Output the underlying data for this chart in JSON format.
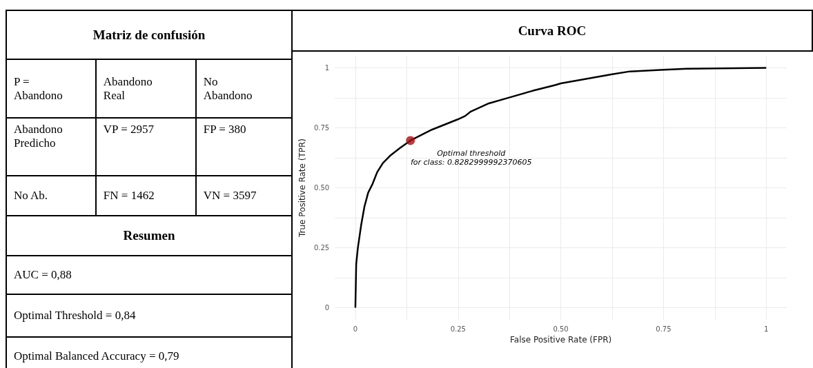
{
  "chart_data": [
    {
      "type": "other",
      "title": "Matriz de confusión",
      "subtitle": "Resumen",
      "annotations": [
        "P =\nAbandono",
        "Abandono\nReal",
        "No\nAbandono",
        "Abandono\nPredicho",
        "VP = 2957",
        "FP = 380",
        "No Ab.",
        "FN = 1462",
        "VN = 3597",
        "AUC  = 0,88",
        "Optimal Threshold = 0,84",
        "Optimal Balanced Accuracy = 0,79"
      ]
    },
    {
      "type": "line",
      "title": "Curva ROC",
      "xlabel": "False Positive Rate (FPR)",
      "ylabel": "True Positive Rate (TPR)",
      "series": [
        {
          "type": "line",
          "color": "#000000",
          "x": [
            0,
            0.002,
            0.006,
            0.014,
            0.022,
            0.031,
            0.042,
            0.053,
            0.067,
            0.086,
            0.108,
            0.134,
            0.186,
            0.249,
            0.267,
            0.281,
            0.325,
            0.374,
            0.431,
            0.486,
            0.5,
            0.625,
            0.668,
            0.75,
            0.807,
            1
          ],
          "values": [
            0,
            0.182,
            0.249,
            0.344,
            0.421,
            0.479,
            0.517,
            0.565,
            0.603,
            0.636,
            0.665,
            0.697,
            0.742,
            0.785,
            0.799,
            0.818,
            0.852,
            0.876,
            0.904,
            0.928,
            0.935,
            0.973,
            0.985,
            0.992,
            0.996,
            1
          ]
        },
        {
          "type": "scatter",
          "color": "#a50f15",
          "x": [
            0.134
          ],
          "values": [
            0.697
          ]
        }
      ],
      "xlim": [
        -0.05,
        1.05
      ],
      "ylim": [
        -0.05,
        1.05
      ],
      "xticks": [
        0,
        {
          "value": 0.125,
          "label": null
        },
        0.25,
        {
          "value": 0.375,
          "label": null
        },
        {
          "value": 0.5,
          "label": "0.50"
        },
        {
          "value": 0.625,
          "label": null
        },
        0.75,
        {
          "value": 0.875,
          "label": null
        },
        1
      ],
      "yticks": [
        0,
        {
          "value": 0.125,
          "label": null
        },
        0.25,
        {
          "value": 0.375,
          "label": null
        },
        {
          "value": 0.5,
          "label": "0.50"
        },
        {
          "value": 0.625,
          "label": null
        },
        0.75,
        {
          "value": 0.875,
          "label": null
        },
        1
      ],
      "grid": true,
      "annotations": [
        {
          "text": "Optimal threshold\nfor class: 0.8282999992370605",
          "x": 0.134,
          "y": 0.697
        }
      ]
    }
  ]
}
